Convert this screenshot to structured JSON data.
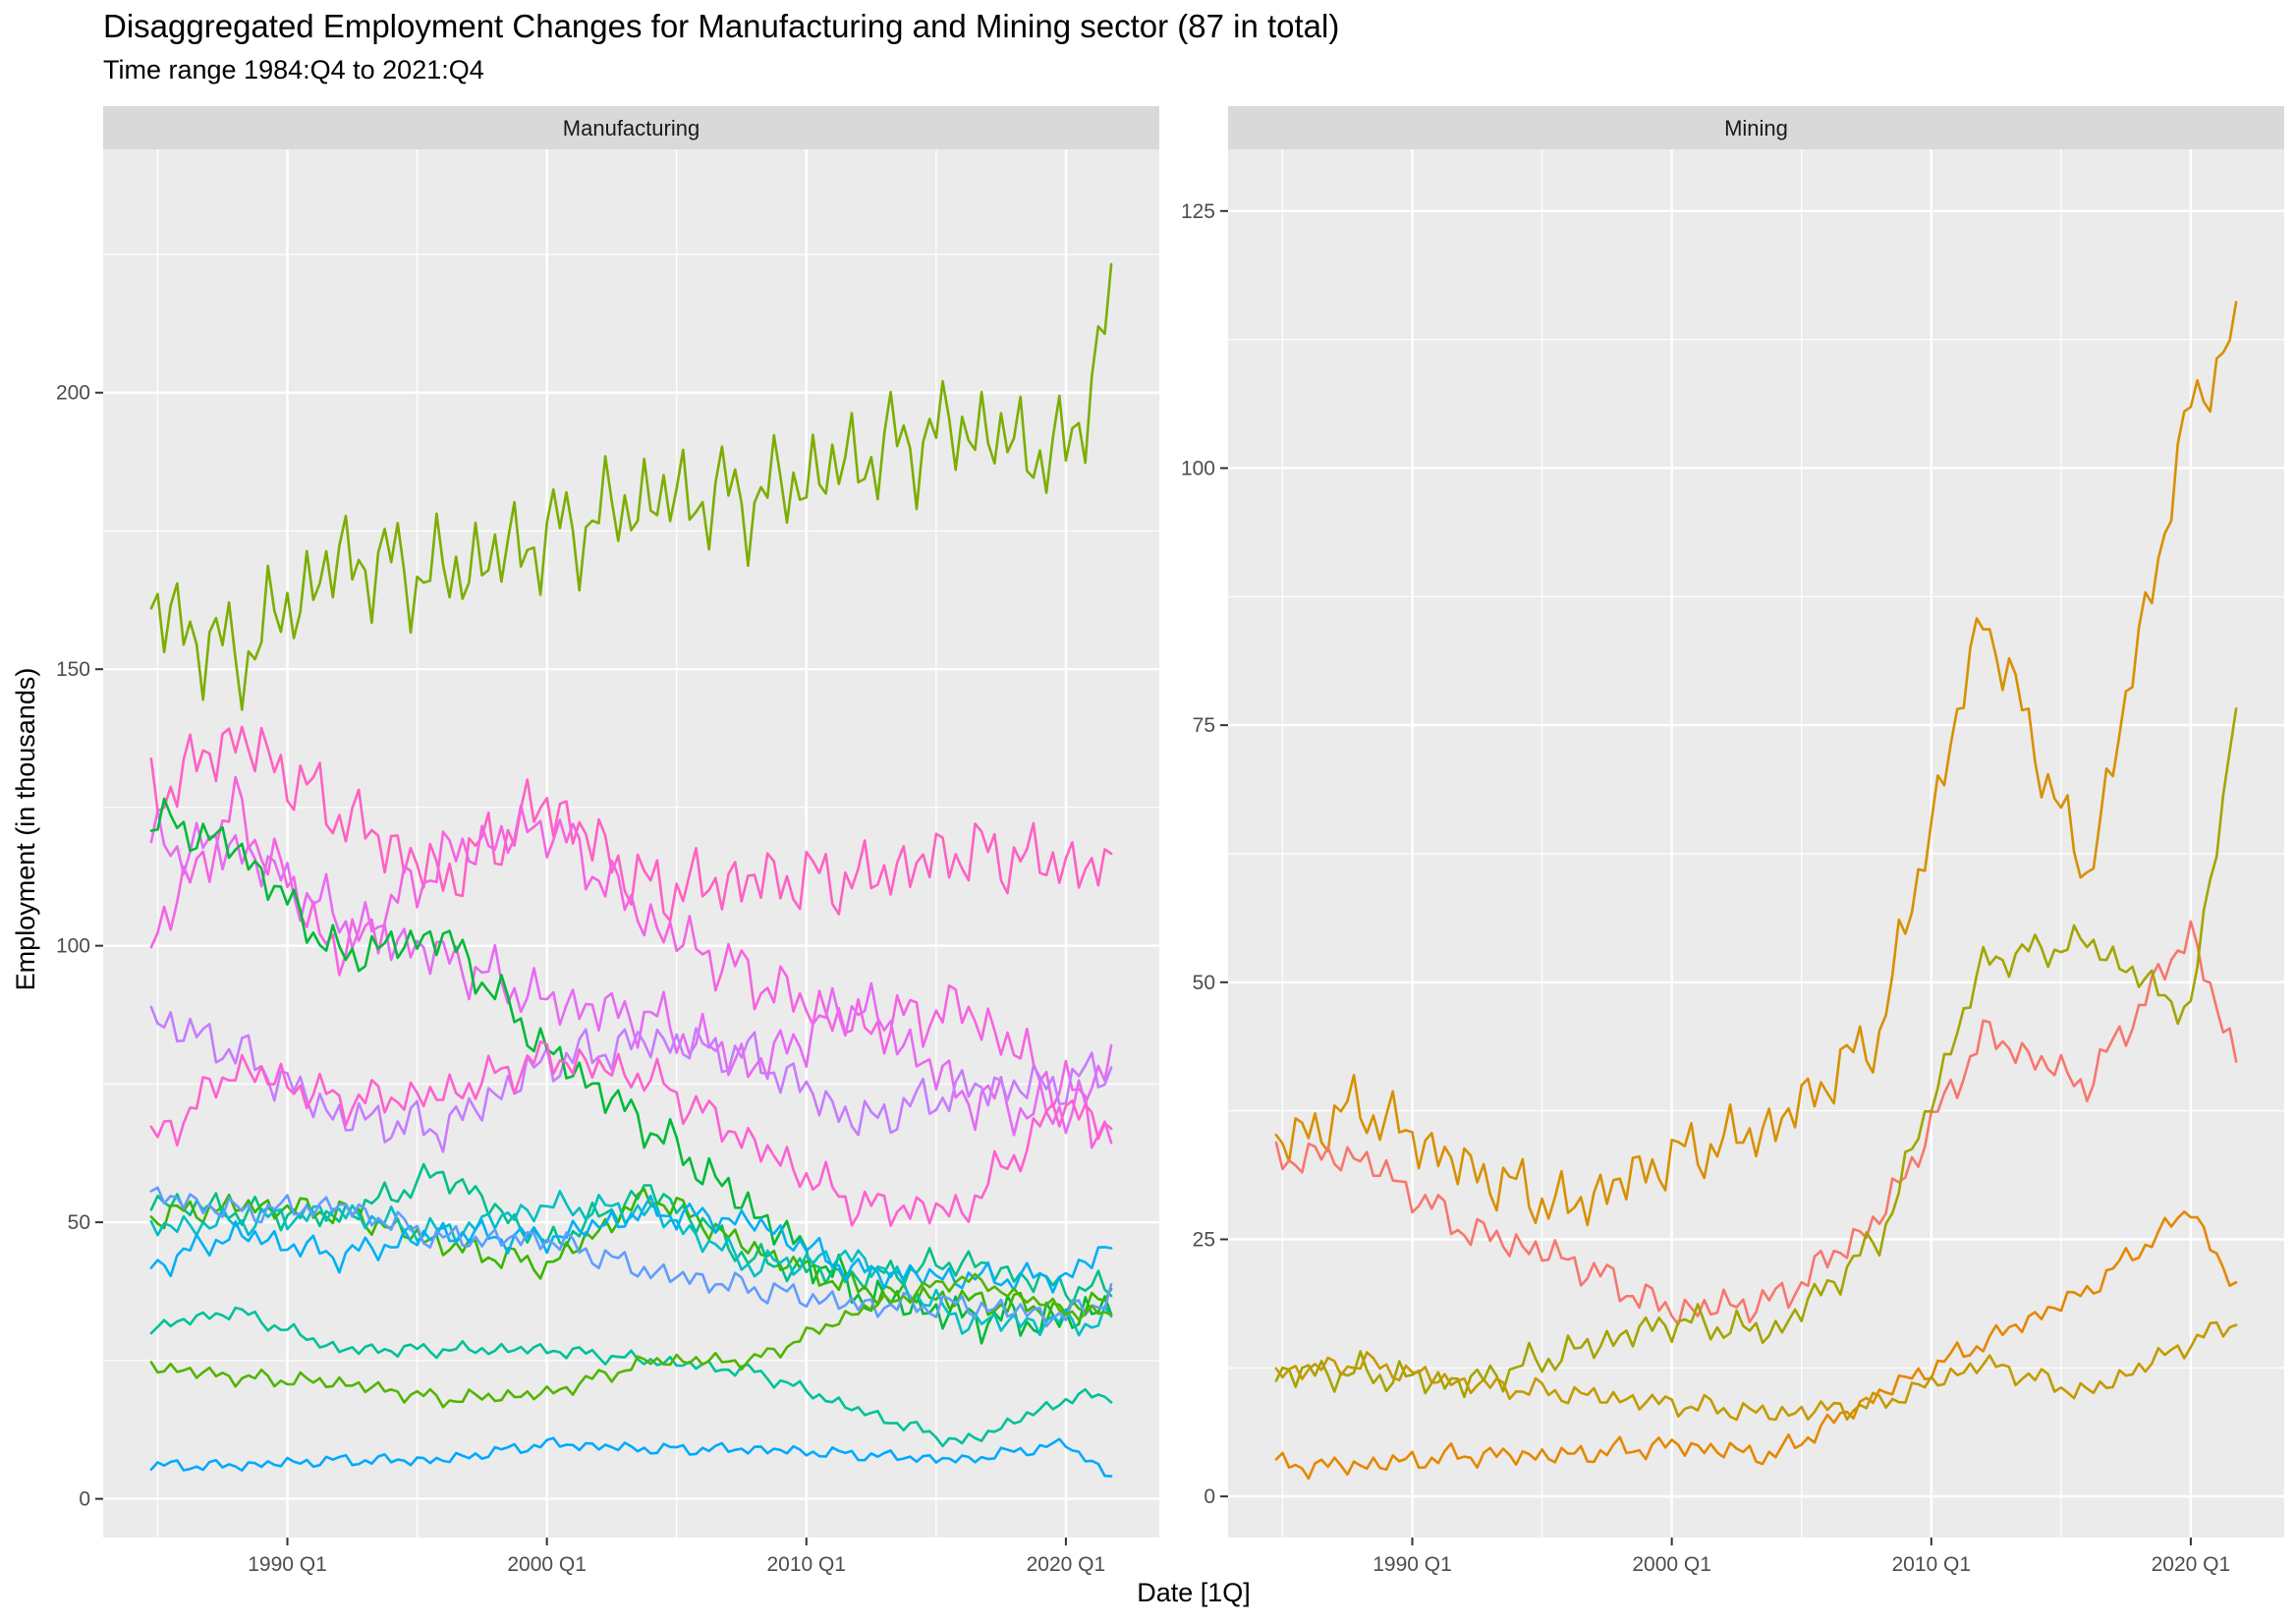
{
  "title": "Disaggregated Employment Changes for Manufacturing and Mining sector (87 in total)",
  "subtitle": "Time range 1984:Q4 to 2021:Q4",
  "chart_data": {
    "type": "line",
    "xlabel": "Date [1Q]",
    "ylabel": "Employment (in thousands)",
    "x_tick_labels": [
      "1990 Q1",
      "2000 Q1",
      "2010 Q1",
      "2020 Q1"
    ],
    "x_tick_years": [
      1990,
      2000,
      2010,
      2020
    ],
    "x_anchors": [
      1984.75,
      1988,
      1992,
      1996,
      2000,
      2004,
      2008,
      2012,
      2016,
      2020,
      2021.75
    ],
    "xlim": [
      1982.9,
      2023.6
    ],
    "grid": true,
    "legend": "none",
    "panels": [
      {
        "name": "Manufacturing",
        "ylim": [
          -7,
          244
        ],
        "y_ticks": [
          0,
          50,
          100,
          150,
          200
        ],
        "y_tick_labels": [
          "0",
          "50",
          "100",
          "150",
          "200"
        ],
        "series": [
          {
            "color": "#7cae00",
            "values": [
              161,
              152,
              170,
              167,
              174,
              181,
              181,
              188,
              194,
              188,
              215
            ]
          },
          {
            "color": "#ff61c3",
            "values": [
              127,
              138,
              124,
              112,
              126,
              110,
              112,
              112,
              117,
              115,
              113
            ]
          },
          {
            "color": "#f564e3",
            "values": [
              101,
              125,
              98,
              116,
              122,
              104,
              94,
              85,
              89,
              74,
              66
            ]
          },
          {
            "color": "#e76bf3",
            "values": [
              118,
              118,
              105,
              98,
              90,
              87,
              78,
              90,
              73,
              69,
              80
            ]
          },
          {
            "color": "#c77cff",
            "values": [
              87,
              81,
              69,
              67,
              79,
              83,
              80,
              68,
              74,
              75,
              78
            ]
          },
          {
            "color": "#00ba38",
            "values": [
              123,
              118,
              98,
              102,
              81,
              67,
              52,
              37,
              33,
              32,
              36
            ]
          },
          {
            "color": "#00c08b",
            "values": [
              54,
              52,
              51,
              59,
              46,
              56,
              43,
              40,
              43,
              38,
              38
            ]
          },
          {
            "color": "#39b600",
            "values": [
              51,
              53,
              52,
              46,
              42,
              55,
              45,
              38,
              36,
              34,
              37
            ]
          },
          {
            "color": "#00bfc4",
            "values": [
              49,
              50,
              52,
              48,
              53,
              52,
              42,
              44,
              32,
              32,
              32
            ]
          },
          {
            "color": "#00b0f6",
            "values": [
              42,
              48,
              44,
              48,
              47,
              52,
              50,
              41,
              40,
              40,
              46
            ]
          },
          {
            "color": "#619cff",
            "values": [
              55,
              52,
              53,
              47,
              47,
              41,
              38,
              35,
              35,
              33,
              37
            ]
          },
          {
            "color": "#fd61d1",
            "values": [
              64,
              78,
              72,
              73,
              80,
              76,
              64,
              53,
              52,
              72,
              66
            ]
          },
          {
            "color": "#00c19a",
            "values": [
              31,
              34,
              27,
              27,
              27,
              25,
              23,
              16,
              10,
              18,
              19
            ]
          },
          {
            "color": "#00a9ff",
            "values": [
              6,
              6,
              7,
              7,
              10,
              9,
              9,
              8,
              7,
              10,
              4
            ]
          },
          {
            "color": "#53b400",
            "values": [
              24,
              22,
              21,
              18,
              19,
              25,
              25,
              34,
              40,
              34,
              33
            ]
          }
        ]
      },
      {
        "name": "Mining",
        "ylim": [
          -4,
          131
        ],
        "y_ticks": [
          0,
          25,
          50,
          75,
          100,
          125
        ],
        "y_tick_labels": [
          "0",
          "25",
          "50",
          "75",
          "100",
          "125"
        ],
        "series": [
          {
            "color": "#d89000",
            "values": [
              34,
              38,
              32,
              28,
              33,
              36,
              45,
              86,
              60,
              106,
              113
            ]
          },
          {
            "color": "#f8766d",
            "values": [
              33,
              33,
              26,
              23,
              18,
              19,
              27,
              45,
              40,
              55,
              42
            ]
          },
          {
            "color": "#a3a500",
            "values": [
              12,
              12,
              11,
              14,
              17,
              16,
              25,
              52,
              54,
              47,
              77
            ]
          },
          {
            "color": "#e58700",
            "values": [
              3,
              3,
              4,
              4,
              5,
              4,
              10,
              15,
              20,
              28,
              20
            ]
          },
          {
            "color": "#c49a00",
            "values": [
              12,
              13,
              11,
              10,
              9,
              8,
              9,
              13,
              10,
              15,
              17
            ]
          }
        ]
      }
    ]
  }
}
